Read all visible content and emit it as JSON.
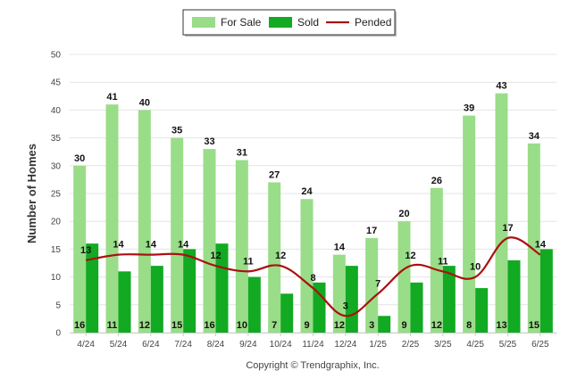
{
  "chart_data": {
    "type": "bar",
    "ylabel": "Number of Homes",
    "ylim": [
      0,
      50
    ],
    "yticks": [
      0,
      5,
      10,
      15,
      20,
      25,
      30,
      35,
      40,
      45,
      50
    ],
    "grid": true,
    "legend_position": "top-center",
    "categories": [
      "4/24",
      "5/24",
      "6/24",
      "7/24",
      "8/24",
      "9/24",
      "10/24",
      "11/24",
      "12/24",
      "1/25",
      "2/25",
      "3/25",
      "4/25",
      "5/25",
      "6/25"
    ],
    "series": [
      {
        "name": "For Sale",
        "kind": "bar",
        "color": "#99dd88",
        "values": [
          30,
          41,
          40,
          35,
          33,
          31,
          27,
          24,
          14,
          17,
          20,
          26,
          39,
          43,
          34
        ]
      },
      {
        "name": "Sold",
        "kind": "bar",
        "color": "#11aa22",
        "values": [
          16,
          11,
          12,
          15,
          16,
          10,
          7,
          9,
          12,
          3,
          9,
          12,
          8,
          13,
          15
        ]
      },
      {
        "name": "Pended",
        "kind": "line",
        "color": "#aa1111",
        "values": [
          13,
          14,
          14,
          14,
          12,
          11,
          12,
          8,
          3,
          7,
          12,
          11,
          10,
          17,
          14
        ]
      }
    ]
  },
  "footer": {
    "copyright": "Copyright © Trendgraphix, Inc."
  }
}
